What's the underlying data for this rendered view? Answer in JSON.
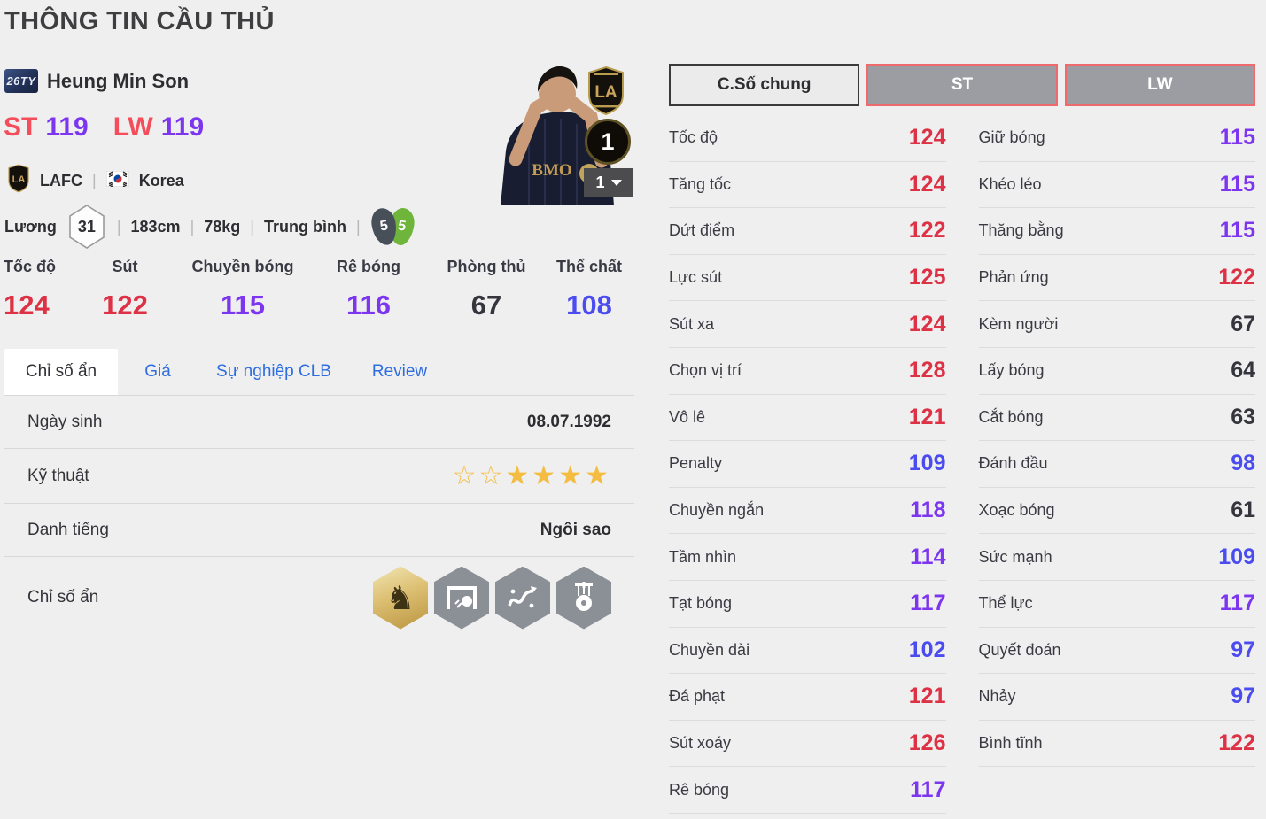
{
  "title": "THÔNG TIN CẦU THỦ",
  "player": {
    "season_badge": "26TY",
    "name": "Heung Min Son",
    "positions": [
      {
        "pos": "ST",
        "rating": "119"
      },
      {
        "pos": "LW",
        "rating": "119"
      }
    ],
    "club": "LAFC",
    "nation": "Korea",
    "separator": "|",
    "salary_label": "Lương",
    "salary_value": "31",
    "height": "183cm",
    "weight": "78kg",
    "body_type": "Trung bình",
    "weak_foot_left": "5",
    "weak_foot_right": "5",
    "enhance_level": "1",
    "enhance_select": "1"
  },
  "main_stats": [
    {
      "label": "Tốc độ",
      "value": 124
    },
    {
      "label": "Sút",
      "value": 122
    },
    {
      "label": "Chuyền bóng",
      "value": 115
    },
    {
      "label": "Rê bóng",
      "value": 116
    },
    {
      "label": "Phòng thủ",
      "value": 67
    },
    {
      "label": "Thể chất",
      "value": 108
    }
  ],
  "tabs": [
    {
      "label": "Chỉ số ẩn",
      "active": true
    },
    {
      "label": "Giá",
      "active": false
    },
    {
      "label": "Sự nghiệp CLB",
      "active": false
    },
    {
      "label": "Review",
      "active": false
    }
  ],
  "profile": {
    "birth_label": "Ngày sinh",
    "birth_value": "08.07.1992",
    "skill_label": "Kỹ thuật",
    "skill_stars": {
      "empty": 2,
      "filled": 4
    },
    "fame_label": "Danh tiếng",
    "fame_value": "Ngôi sao",
    "hidden_label": "Chỉ số ẩn",
    "hidden_badges": [
      {
        "icon": "cavalry-horse-icon",
        "gold": true
      },
      {
        "icon": "goal-shot-icon",
        "gold": false
      },
      {
        "icon": "dribble-weave-icon",
        "gold": false
      },
      {
        "icon": "puppet-ball-icon",
        "gold": false
      }
    ]
  },
  "detail_panel": {
    "buttons": [
      {
        "label": "C.Số chung",
        "active": true
      },
      {
        "label": "ST",
        "active": false
      },
      {
        "label": "LW",
        "active": false
      }
    ],
    "left_column": [
      {
        "label": "Tốc độ",
        "value": 124
      },
      {
        "label": "Tăng tốc",
        "value": 124
      },
      {
        "label": "Dứt điểm",
        "value": 122
      },
      {
        "label": "Lực sút",
        "value": 125
      },
      {
        "label": "Sút xa",
        "value": 124
      },
      {
        "label": "Chọn vị trí",
        "value": 128
      },
      {
        "label": "Vô lê",
        "value": 121
      },
      {
        "label": "Penalty",
        "value": 109
      },
      {
        "label": "Chuyền ngắn",
        "value": 118
      },
      {
        "label": "Tầm nhìn",
        "value": 114
      },
      {
        "label": "Tạt bóng",
        "value": 117
      },
      {
        "label": "Chuyền dài",
        "value": 102
      },
      {
        "label": "Đá phạt",
        "value": 121
      },
      {
        "label": "Sút xoáy",
        "value": 126
      },
      {
        "label": "Rê bóng",
        "value": 117
      }
    ],
    "right_column": [
      {
        "label": "Giữ bóng",
        "value": 115
      },
      {
        "label": "Khéo léo",
        "value": 115
      },
      {
        "label": "Thăng bằng",
        "value": 115
      },
      {
        "label": "Phản ứng",
        "value": 122
      },
      {
        "label": "Kèm người",
        "value": 67
      },
      {
        "label": "Lấy bóng",
        "value": 64
      },
      {
        "label": "Cắt bóng",
        "value": 63
      },
      {
        "label": "Đánh đầu",
        "value": 98
      },
      {
        "label": "Xoạc bóng",
        "value": 61
      },
      {
        "label": "Sức mạnh",
        "value": 109
      },
      {
        "label": "Thể lực",
        "value": 117
      },
      {
        "label": "Quyết đoán",
        "value": 97
      },
      {
        "label": "Nhảy",
        "value": 97
      },
      {
        "label": "Bình tĩnh",
        "value": 122
      }
    ]
  },
  "colors": {
    "background": "#efefef",
    "value_high": "#dd3246",
    "value_mid": "#7d36f0",
    "value_low": "#4b4cf0",
    "value_base": "#35353d",
    "pos_label": "#f44e5c",
    "tab_link": "#2e6de0",
    "accent_border": "#ee6a6d",
    "star": "#f4bd41",
    "foot_left": "#474f59",
    "foot_right": "#6fb53c"
  }
}
